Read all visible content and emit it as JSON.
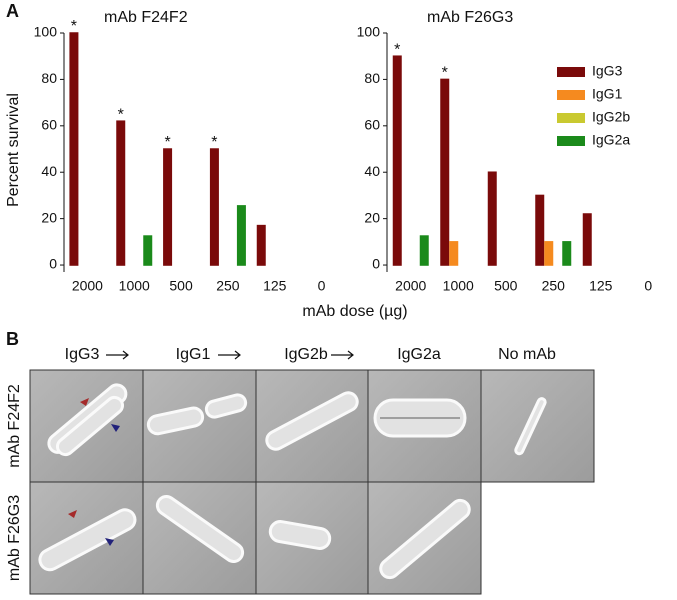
{
  "panel_a": {
    "label": "A",
    "ylabel": "Percent survival",
    "xlabel": "mAb dose (µg)"
  },
  "chart_data": [
    {
      "type": "bar",
      "title": "mAb F24F2",
      "legend": "none",
      "categories": [
        "2000",
        "1000",
        "500",
        "250",
        "125",
        "0"
      ],
      "series": [
        {
          "name": "IgG3",
          "color": "#7a0a0a",
          "values": [
            100,
            62,
            50,
            50,
            17,
            0
          ]
        },
        {
          "name": "IgG1",
          "color": "#f58a1f",
          "values": [
            0,
            0,
            0,
            0,
            0,
            0
          ]
        },
        {
          "name": "IgG2b",
          "color": "#c9c930",
          "values": [
            0,
            0,
            0,
            0,
            0,
            0
          ]
        },
        {
          "name": "IgG2a",
          "color": "#1b8a1b",
          "values": [
            0,
            12.5,
            0,
            25.5,
            0,
            0
          ]
        }
      ],
      "annotations": [
        {
          "text": "*",
          "category": "2000",
          "series": "IgG3"
        },
        {
          "text": "*",
          "category": "1000",
          "series": "IgG3"
        },
        {
          "text": "*",
          "category": "500",
          "series": "IgG3"
        },
        {
          "text": "*",
          "category": "250",
          "series": "IgG3"
        }
      ],
      "ylim": [
        -3,
        100
      ],
      "yticks": [
        0,
        20,
        40,
        60,
        80,
        100
      ]
    },
    {
      "type": "bar",
      "title": "mAb F26G3",
      "legend": "upper right",
      "categories": [
        "2000",
        "1000",
        "500",
        "250",
        "125",
        "0"
      ],
      "series": [
        {
          "name": "IgG3",
          "color": "#7a0a0a",
          "values": [
            90,
            80,
            40,
            30,
            22,
            0
          ]
        },
        {
          "name": "IgG1",
          "color": "#f58a1f",
          "values": [
            0,
            10,
            0,
            10,
            0,
            0
          ]
        },
        {
          "name": "IgG2b",
          "color": "#c9c930",
          "values": [
            0,
            0,
            0,
            0,
            0,
            0
          ]
        },
        {
          "name": "IgG2a",
          "color": "#1b8a1b",
          "values": [
            12.5,
            0,
            0,
            10,
            0,
            0
          ]
        }
      ],
      "annotations": [
        {
          "text": "*",
          "category": "2000",
          "series": "IgG3"
        },
        {
          "text": "*",
          "category": "1000",
          "series": "IgG3"
        }
      ],
      "ylim": [
        -3,
        100
      ],
      "yticks": [
        0,
        20,
        40,
        60,
        80,
        100
      ]
    }
  ],
  "panel_b": {
    "label": "B",
    "columns": [
      "IgG3",
      "IgG1",
      "IgG2b",
      "IgG2a",
      "No mAb"
    ],
    "rows": [
      "mAb F24F2",
      "mAb F26G3"
    ]
  }
}
